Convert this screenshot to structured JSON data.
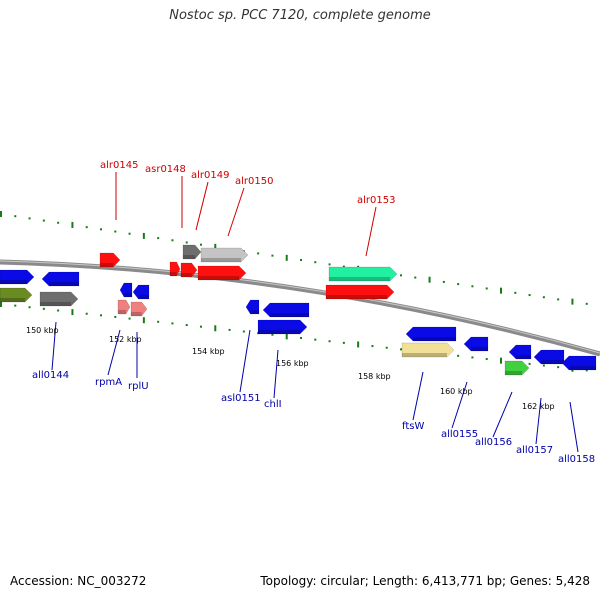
{
  "title": "Nostoc sp. PCC 7120, complete genome",
  "footer": {
    "accession": "Accession: NC_003272",
    "topology": "Topology: circular; Length: 6,413,771 bp; Genes: 5,428"
  },
  "scale_labels": [
    "150 kbp",
    "152 kbp",
    "154 kbp",
    "156 kbp",
    "158 kbp",
    "160 kbp",
    "162 kbp"
  ],
  "forward_genes": [
    "alr0145",
    "asr0148",
    "alr0149",
    "alr0150",
    "alr0153"
  ],
  "reverse_genes": [
    "all0144",
    "rpmA",
    "rplU",
    "asl0151",
    "chlI",
    "ftsW",
    "all0155",
    "all0156",
    "all0157",
    "all0158"
  ],
  "colors": {
    "backbone": "#888888",
    "forward_label": "#cc0000",
    "reverse_label": "#0000aa",
    "tick": "#1a7a1a",
    "red": "#ff1010",
    "blue": "#0a0ae6",
    "teal": "#20f0a0",
    "olive": "#6a8a22",
    "grey": "#6e6e6e",
    "silver": "#c4c4c4",
    "pink": "#f08080",
    "khaki": "#f0e098",
    "green": "#40d040"
  }
}
